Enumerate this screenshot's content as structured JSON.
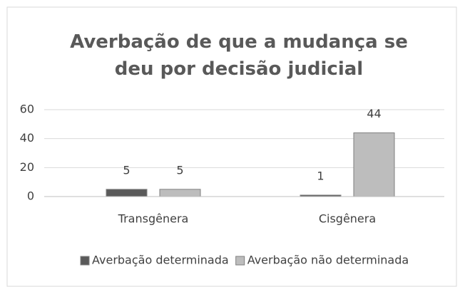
{
  "chart_data": {
    "type": "bar",
    "title": "Averbação de que a mudança se deu por decisão judicial",
    "categories": [
      "Transgênera",
      "Cisgênera"
    ],
    "series": [
      {
        "name": "Averbação determinada",
        "color": "#5a5a5a",
        "values": [
          5,
          1
        ]
      },
      {
        "name": "Averbação não determinada",
        "color": "#bdbdbd",
        "values": [
          5,
          44
        ]
      }
    ],
    "ylim": [
      0,
      60
    ],
    "yticks": [
      0,
      20,
      40,
      60
    ],
    "grid": true,
    "legend": "bottom"
  }
}
